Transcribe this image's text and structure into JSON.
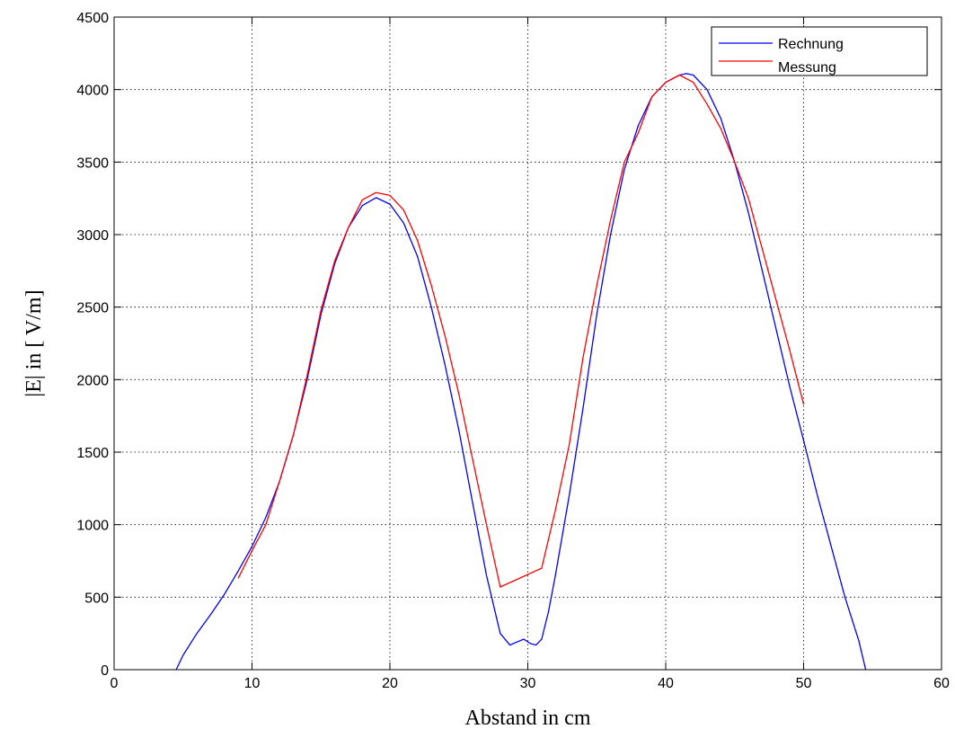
{
  "chart_data": {
    "type": "line",
    "title": "",
    "xlabel": "Abstand in cm",
    "ylabel": "|E| in [ V/m]",
    "xlim": [
      0,
      60
    ],
    "ylim": [
      0,
      4500
    ],
    "xticks": [
      0,
      10,
      20,
      30,
      40,
      50,
      60
    ],
    "yticks": [
      0,
      500,
      1000,
      1500,
      2000,
      2500,
      3000,
      3500,
      4000,
      4500
    ],
    "grid": true,
    "legend_position": "top-right",
    "series": [
      {
        "name": "Rechnung",
        "color": "#0000ff",
        "points": [
          [
            4.5,
            0
          ],
          [
            5,
            100
          ],
          [
            6,
            250
          ],
          [
            7,
            380
          ],
          [
            8,
            520
          ],
          [
            9,
            680
          ],
          [
            10,
            850
          ],
          [
            11,
            1050
          ],
          [
            12,
            1300
          ],
          [
            13,
            1620
          ],
          [
            14,
            2000
          ],
          [
            15,
            2450
          ],
          [
            16,
            2800
          ],
          [
            17,
            3050
          ],
          [
            18,
            3200
          ],
          [
            19,
            3255
          ],
          [
            20,
            3210
          ],
          [
            21,
            3080
          ],
          [
            22,
            2850
          ],
          [
            23,
            2500
          ],
          [
            24,
            2100
          ],
          [
            25,
            1650
          ],
          [
            26,
            1150
          ],
          [
            27,
            650
          ],
          [
            28,
            250
          ],
          [
            28.7,
            170
          ],
          [
            29.2,
            190
          ],
          [
            29.7,
            210
          ],
          [
            30.2,
            180
          ],
          [
            30.6,
            170
          ],
          [
            31,
            210
          ],
          [
            31.5,
            400
          ],
          [
            32,
            650
          ],
          [
            33,
            1200
          ],
          [
            34,
            1800
          ],
          [
            35,
            2450
          ],
          [
            36,
            3000
          ],
          [
            37,
            3450
          ],
          [
            38,
            3750
          ],
          [
            39,
            3950
          ],
          [
            40,
            4050
          ],
          [
            41,
            4100
          ],
          [
            41.5,
            4110
          ],
          [
            42,
            4100
          ],
          [
            43,
            4000
          ],
          [
            44,
            3800
          ],
          [
            45,
            3500
          ],
          [
            46,
            3150
          ],
          [
            47,
            2750
          ],
          [
            48,
            2350
          ],
          [
            49,
            1950
          ],
          [
            50,
            1580
          ],
          [
            51,
            1200
          ],
          [
            52,
            850
          ],
          [
            53,
            500
          ],
          [
            54,
            200
          ],
          [
            54.5,
            0
          ]
        ]
      },
      {
        "name": "Messung",
        "color": "#ff0000",
        "points": [
          [
            9,
            630
          ],
          [
            10,
            820
          ],
          [
            11,
            1000
          ],
          [
            12,
            1300
          ],
          [
            13,
            1620
          ],
          [
            14,
            2030
          ],
          [
            15,
            2480
          ],
          [
            16,
            2820
          ],
          [
            17,
            3050
          ],
          [
            18,
            3240
          ],
          [
            19,
            3290
          ],
          [
            20,
            3270
          ],
          [
            21,
            3170
          ],
          [
            22,
            2960
          ],
          [
            23,
            2650
          ],
          [
            24,
            2300
          ],
          [
            25,
            1900
          ],
          [
            26,
            1450
          ],
          [
            27,
            1000
          ],
          [
            28,
            570
          ],
          [
            31,
            700
          ],
          [
            32,
            1100
          ],
          [
            33,
            1550
          ],
          [
            34,
            2150
          ],
          [
            35,
            2650
          ],
          [
            36,
            3100
          ],
          [
            37,
            3500
          ],
          [
            38,
            3700
          ],
          [
            39,
            3950
          ],
          [
            40,
            4050
          ],
          [
            41,
            4100
          ],
          [
            42,
            4050
          ],
          [
            43,
            3900
          ],
          [
            44,
            3730
          ],
          [
            45,
            3500
          ],
          [
            46,
            3250
          ],
          [
            47,
            2900
          ],
          [
            48,
            2550
          ],
          [
            49,
            2200
          ],
          [
            50,
            1830
          ]
        ]
      }
    ]
  }
}
